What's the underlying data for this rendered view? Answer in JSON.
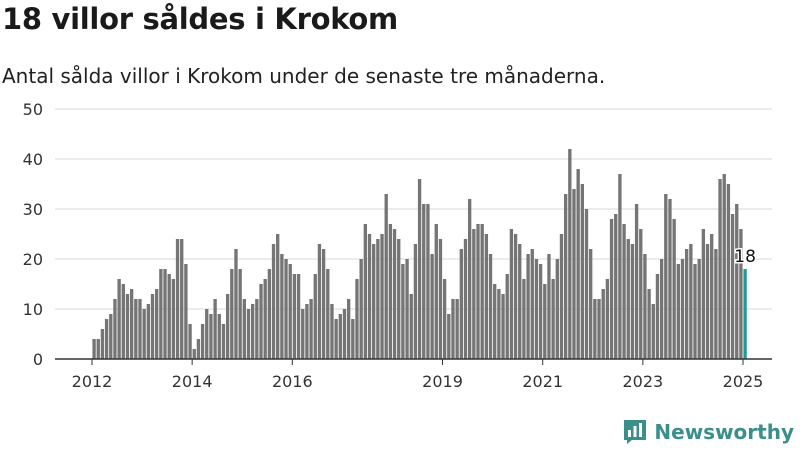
{
  "header": {
    "title": "18 villor såldes i Krokom",
    "subtitle": "Antal sålda villor i Krokom under de senaste tre månaderna."
  },
  "colors": {
    "bar": "#757575",
    "highlight": "#1a9e96",
    "grid": "#d9d9d9",
    "axis": "#333333",
    "brand": "#3a8f8a"
  },
  "brand": {
    "name": "Newsworthy",
    "icon": "chart-logo-icon"
  },
  "chart_data": {
    "type": "bar",
    "title": "18 villor såldes i Krokom",
    "subtitle": "Antal sålda villor i Krokom under de senaste tre månaderna.",
    "xlabel": "",
    "ylabel": "",
    "ylim": [
      0,
      50
    ],
    "yticks": [
      0,
      10,
      20,
      30,
      40,
      50
    ],
    "grid": true,
    "x_start": "2012-01",
    "x_ticks": [
      {
        "label": "2012",
        "index": 0
      },
      {
        "label": "2014",
        "index": 24
      },
      {
        "label": "2016",
        "index": 48
      },
      {
        "label": "2019",
        "index": 84
      },
      {
        "label": "2021",
        "index": 108
      },
      {
        "label": "2023",
        "index": 132
      },
      {
        "label": "2025",
        "index": 156
      }
    ],
    "values": [
      4,
      4,
      6,
      8,
      9,
      12,
      16,
      15,
      13,
      14,
      12,
      12,
      10,
      11,
      13,
      14,
      18,
      18,
      17,
      16,
      24,
      24,
      19,
      7,
      2,
      4,
      7,
      10,
      9,
      12,
      9,
      7,
      13,
      18,
      22,
      18,
      12,
      10,
      11,
      12,
      15,
      16,
      18,
      23,
      25,
      21,
      20,
      19,
      17,
      17,
      10,
      11,
      12,
      17,
      23,
      22,
      18,
      11,
      8,
      9,
      10,
      12,
      8,
      16,
      20,
      27,
      25,
      23,
      24,
      25,
      33,
      27,
      26,
      24,
      19,
      20,
      13,
      23,
      36,
      31,
      31,
      21,
      27,
      24,
      16,
      9,
      12,
      12,
      22,
      24,
      32,
      26,
      27,
      27,
      25,
      21,
      15,
      14,
      13,
      17,
      26,
      25,
      23,
      16,
      21,
      22,
      20,
      19,
      15,
      21,
      16,
      20,
      25,
      33,
      42,
      34,
      38,
      35,
      30,
      22,
      12,
      12,
      14,
      16,
      28,
      29,
      37,
      27,
      24,
      23,
      31,
      26,
      21,
      14,
      11,
      17,
      20,
      33,
      32,
      28,
      19,
      20,
      22,
      23,
      19,
      20,
      26,
      23,
      25,
      22,
      36,
      37,
      35,
      29,
      31,
      26,
      18
    ],
    "last_value_label": "18"
  }
}
